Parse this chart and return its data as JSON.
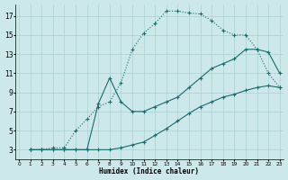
{
  "xlabel": "Humidex (Indice chaleur)",
  "bg_color": "#cce8ea",
  "grid_color": "#aad0d4",
  "line_color": "#1a6b6b",
  "xlim": [
    -0.3,
    23.3
  ],
  "ylim": [
    2.0,
    18.2
  ],
  "xticks": [
    0,
    1,
    2,
    3,
    4,
    5,
    6,
    7,
    8,
    9,
    10,
    11,
    12,
    13,
    14,
    15,
    16,
    17,
    18,
    19,
    20,
    21,
    22,
    23
  ],
  "yticks": [
    3,
    5,
    7,
    9,
    11,
    13,
    15,
    17
  ],
  "line1_x": [
    1,
    2,
    3,
    4,
    5,
    6,
    7,
    8,
    9,
    10,
    11,
    12,
    13,
    14,
    15,
    16,
    17,
    18,
    19,
    20,
    21,
    22,
    23
  ],
  "line1_y": [
    3.0,
    3.0,
    3.2,
    3.2,
    5.0,
    6.2,
    7.5,
    8.0,
    10.0,
    13.5,
    15.2,
    16.2,
    17.5,
    17.5,
    17.3,
    17.2,
    16.5,
    15.5,
    15.0,
    15.0,
    13.5,
    11.0,
    9.5
  ],
  "line2_x": [
    1,
    2,
    3,
    4,
    5,
    6,
    7,
    8,
    9,
    10,
    11,
    12,
    13,
    14,
    15,
    16,
    17,
    18,
    19,
    20,
    21,
    22,
    23
  ],
  "line2_y": [
    3.0,
    3.0,
    3.0,
    3.0,
    3.0,
    3.0,
    7.8,
    10.5,
    8.0,
    7.0,
    7.0,
    7.5,
    8.0,
    8.5,
    9.5,
    10.5,
    11.5,
    12.0,
    12.5,
    13.5,
    13.5,
    13.2,
    11.0
  ],
  "line3_x": [
    1,
    2,
    3,
    4,
    5,
    6,
    7,
    8,
    9,
    10,
    11,
    12,
    13,
    14,
    15,
    16,
    17,
    18,
    19,
    20,
    21,
    22,
    23
  ],
  "line3_y": [
    3.0,
    3.0,
    3.0,
    3.0,
    3.0,
    3.0,
    3.0,
    3.0,
    3.2,
    3.5,
    3.8,
    4.5,
    5.2,
    6.0,
    6.8,
    7.5,
    8.0,
    8.5,
    8.8,
    9.2,
    9.5,
    9.7,
    9.5
  ]
}
